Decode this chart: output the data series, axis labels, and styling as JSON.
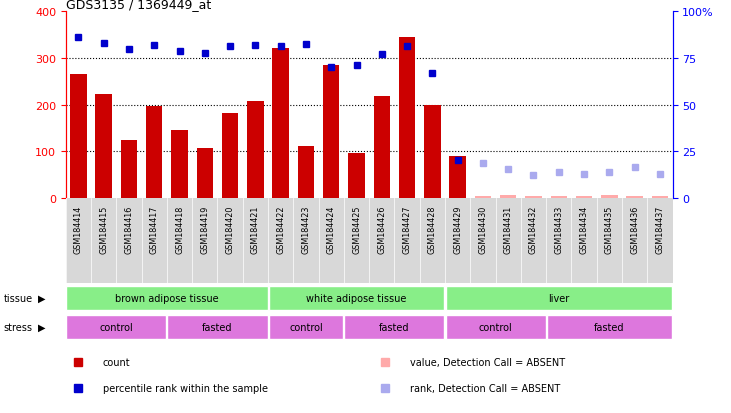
{
  "title": "GDS3135 / 1369449_at",
  "samples": [
    "GSM184414",
    "GSM184415",
    "GSM184416",
    "GSM184417",
    "GSM184418",
    "GSM184419",
    "GSM184420",
    "GSM184421",
    "GSM184422",
    "GSM184423",
    "GSM184424",
    "GSM184425",
    "GSM184426",
    "GSM184427",
    "GSM184428",
    "GSM184429",
    "GSM184430",
    "GSM184431",
    "GSM184432",
    "GSM184433",
    "GSM184434",
    "GSM184435",
    "GSM184436",
    "GSM184437"
  ],
  "count_values": [
    265,
    222,
    125,
    197,
    145,
    107,
    182,
    207,
    322,
    110,
    285,
    97,
    218,
    345,
    200,
    90,
    3,
    5,
    3,
    4,
    3,
    5,
    3,
    4
  ],
  "count_absent": [
    false,
    false,
    false,
    false,
    false,
    false,
    false,
    false,
    false,
    false,
    false,
    false,
    false,
    false,
    false,
    false,
    true,
    true,
    true,
    true,
    true,
    true,
    true,
    true
  ],
  "rank_values": [
    345,
    332,
    320,
    328,
    315,
    310,
    325,
    328,
    325,
    330,
    280,
    285,
    308,
    325,
    268,
    82,
    75,
    62,
    48,
    55,
    50,
    56,
    65,
    52
  ],
  "rank_absent": [
    false,
    false,
    false,
    false,
    false,
    false,
    false,
    false,
    false,
    false,
    false,
    false,
    false,
    false,
    false,
    false,
    true,
    true,
    true,
    true,
    true,
    true,
    true,
    true
  ],
  "ylim": [
    0,
    400
  ],
  "yticks": [
    0,
    100,
    200,
    300,
    400
  ],
  "ytick_labels_right": [
    "0",
    "25",
    "50",
    "75",
    "100%"
  ],
  "bar_color": "#cc0000",
  "bar_absent_color": "#ffaaaa",
  "dot_color": "#0000cc",
  "dot_absent_color": "#aaaaee",
  "bg_color": "#d8d8d8",
  "tissue_groups": [
    {
      "label": "brown adipose tissue",
      "start": 0,
      "end": 8,
      "color": "#88ee88"
    },
    {
      "label": "white adipose tissue",
      "start": 8,
      "end": 15,
      "color": "#88ee88"
    },
    {
      "label": "liver",
      "start": 15,
      "end": 24,
      "color": "#88ee88"
    }
  ],
  "stress_groups": [
    {
      "label": "control",
      "start": 0,
      "end": 4,
      "color": "#dd77dd"
    },
    {
      "label": "fasted",
      "start": 4,
      "end": 8,
      "color": "#dd77dd"
    },
    {
      "label": "control",
      "start": 8,
      "end": 11,
      "color": "#dd77dd"
    },
    {
      "label": "fasted",
      "start": 11,
      "end": 15,
      "color": "#dd77dd"
    },
    {
      "label": "control",
      "start": 15,
      "end": 19,
      "color": "#dd77dd"
    },
    {
      "label": "fasted",
      "start": 19,
      "end": 24,
      "color": "#dd77dd"
    }
  ],
  "legend_items": [
    {
      "label": "count",
      "color": "#cc0000"
    },
    {
      "label": "percentile rank within the sample",
      "color": "#0000cc"
    },
    {
      "label": "value, Detection Call = ABSENT",
      "color": "#ffaaaa"
    },
    {
      "label": "rank, Detection Call = ABSENT",
      "color": "#aaaaee"
    }
  ]
}
